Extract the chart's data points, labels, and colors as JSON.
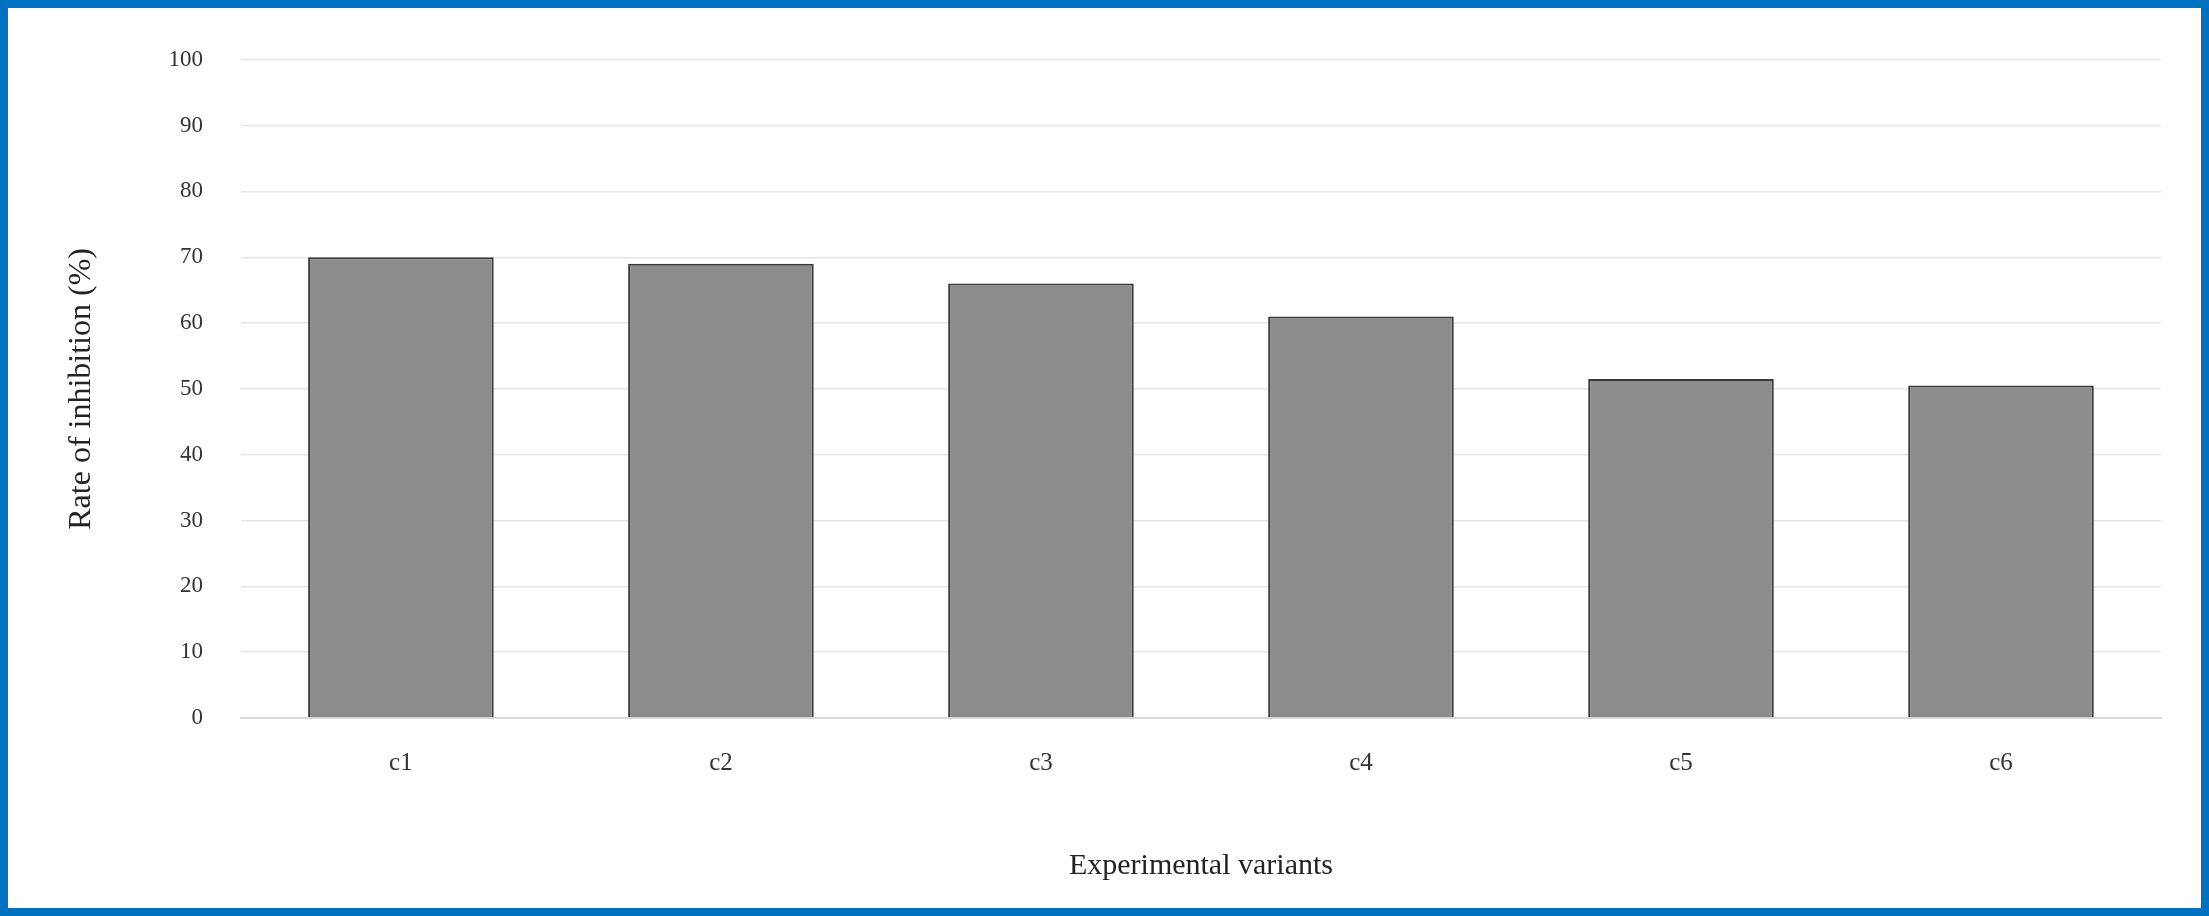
{
  "chart_data": {
    "type": "bar",
    "xlabel": "Experimental variants",
    "ylabel": "Rate of inhibition (%)",
    "categories": [
      "c1",
      "c2",
      "c3",
      "c4",
      "c5",
      "c6"
    ],
    "values": [
      70,
      69,
      66,
      61,
      51.5,
      50.5
    ],
    "color": "#8c8c8c",
    "ylim": [
      0,
      100
    ],
    "yticks": [
      0,
      10,
      20,
      30,
      40,
      50,
      60,
      70,
      80,
      90,
      100
    ],
    "grid": "y",
    "legend": false
  }
}
